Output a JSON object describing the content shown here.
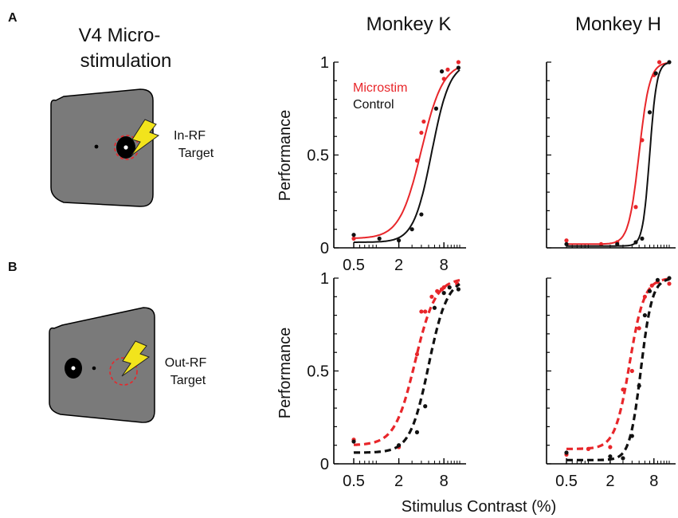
{
  "panel_labels": {
    "a": "A",
    "b": "B"
  },
  "diagram": {
    "title_line1": "V4 Micro-",
    "title_line2": "stimulation",
    "in_rf_line1": "In-RF",
    "in_rf_line2": "Target",
    "out_rf_line1": "Out-RF",
    "out_rf_line2": "Target"
  },
  "column_titles": {
    "left": "Monkey K",
    "right": "Monkey H"
  },
  "shared_xlabel": "Stimulus Contrast (%)",
  "legend": {
    "microstim": "Microstim",
    "control": "Control"
  },
  "colors": {
    "microstim": "#e8262a",
    "control": "#111111",
    "screen": "#7a7a7a",
    "bolt": "#f2e41c"
  },
  "chart_data": [
    {
      "id": "A-monkey-K",
      "type": "line",
      "title": "Monkey K",
      "ylabel": "Performance",
      "xlabel": "",
      "x_scale": "log",
      "xlim": [
        0.5,
        13
      ],
      "ylim": [
        0,
        1
      ],
      "xticks": [
        "0.5",
        "2",
        "8"
      ],
      "yticks": [
        "0",
        "0.5",
        "1"
      ],
      "line_style": "solid",
      "series": [
        {
          "name": "Microstim",
          "color": "#e8262a",
          "points": {
            "x": [
              0.5,
              3.5,
              4.0,
              4.3,
              8.0,
              9.0,
              12.5
            ],
            "y": [
              0.05,
              0.47,
              0.62,
              0.68,
              0.91,
              0.96,
              1.0
            ]
          },
          "fit": {
            "mid": 4.0,
            "slope": 3.0,
            "low": 0.05,
            "high": 1.0
          }
        },
        {
          "name": "Control",
          "color": "#111111",
          "points": {
            "x": [
              0.5,
              1.1,
              2.0,
              3.0,
              4.0,
              6.3,
              7.5,
              12.5
            ],
            "y": [
              0.07,
              0.05,
              0.04,
              0.1,
              0.18,
              0.75,
              0.95,
              0.97
            ]
          },
          "fit": {
            "mid": 5.5,
            "slope": 3.6,
            "low": 0.03,
            "high": 1.0
          }
        }
      ]
    },
    {
      "id": "A-monkey-H",
      "type": "line",
      "title": "Monkey H",
      "ylabel": "",
      "xlabel": "",
      "x_scale": "log",
      "xlim": [
        0.5,
        13
      ],
      "ylim": [
        0,
        1
      ],
      "xticks": [],
      "yticks": [],
      "line_style": "solid",
      "series": [
        {
          "name": "Microstim",
          "color": "#e8262a",
          "points": {
            "x": [
              0.5,
              1.5,
              2.5,
              4.5,
              5.5,
              8.0,
              9.5
            ],
            "y": [
              0.04,
              0.02,
              0.03,
              0.22,
              0.58,
              0.93,
              1.0
            ]
          },
          "fit": {
            "mid": 5.0,
            "slope": 6.0,
            "low": 0.02,
            "high": 1.0
          }
        },
        {
          "name": "Control",
          "color": "#111111",
          "points": {
            "x": [
              0.5,
              2.5,
              4.5,
              5.5,
              7.0,
              8.5,
              13.0
            ],
            "y": [
              0.02,
              0.02,
              0.03,
              0.05,
              0.73,
              0.94,
              1.0
            ]
          },
          "fit": {
            "mid": 7.0,
            "slope": 9.0,
            "low": 0.01,
            "high": 1.0
          }
        }
      ]
    },
    {
      "id": "B-monkey-K",
      "type": "line",
      "title": "",
      "ylabel": "Performance",
      "xlabel": "",
      "x_scale": "log",
      "xlim": [
        0.5,
        13
      ],
      "ylim": [
        0,
        1
      ],
      "xticks": [
        "0.5",
        "2",
        "8"
      ],
      "yticks": [
        "0",
        "0.5",
        "1"
      ],
      "line_style": "dashed",
      "series": [
        {
          "name": "Microstim",
          "color": "#e8262a",
          "points": {
            "x": [
              0.5,
              2.0,
              3.5,
              4.0,
              4.5,
              5.5,
              6.5,
              7.5,
              8.0,
              12.0
            ],
            "y": [
              0.13,
              0.09,
              0.59,
              0.82,
              0.82,
              0.9,
              0.93,
              0.94,
              0.95,
              0.97
            ]
          },
          "fit": {
            "mid": 3.3,
            "slope": 3.2,
            "low": 0.1,
            "high": 1.0
          }
        },
        {
          "name": "Control",
          "color": "#111111",
          "points": {
            "x": [
              0.5,
              2.0,
              3.5,
              4.5,
              6.0,
              8.0,
              9.5,
              12.5
            ],
            "y": [
              0.12,
              0.1,
              0.17,
              0.31,
              0.84,
              0.92,
              0.95,
              0.94
            ]
          },
          "fit": {
            "mid": 5.0,
            "slope": 3.5,
            "low": 0.06,
            "high": 1.0
          }
        }
      ]
    },
    {
      "id": "B-monkey-H",
      "type": "line",
      "title": "",
      "ylabel": "",
      "xlabel": "",
      "x_scale": "log",
      "xlim": [
        0.5,
        13
      ],
      "ylim": [
        0,
        1
      ],
      "xticks": [
        "0.5",
        "2",
        "8"
      ],
      "yticks": [],
      "line_style": "dashed",
      "series": [
        {
          "name": "Microstim",
          "color": "#e8262a",
          "points": {
            "x": [
              0.5,
              1.0,
              2.0,
              3.0,
              4.0,
              5.0,
              6.0,
              7.5,
              9.0,
              13.0
            ],
            "y": [
              0.05,
              0.08,
              0.09,
              0.4,
              0.5,
              0.73,
              0.9,
              0.96,
              0.98,
              0.97
            ]
          },
          "fit": {
            "mid": 3.7,
            "slope": 4.3,
            "low": 0.08,
            "high": 1.0
          }
        },
        {
          "name": "Control",
          "color": "#111111",
          "points": {
            "x": [
              0.5,
              2.0,
              3.0,
              4.0,
              5.0,
              6.0,
              7.0,
              9.0,
              13.0
            ],
            "y": [
              0.06,
              0.04,
              0.03,
              0.15,
              0.42,
              0.8,
              0.93,
              0.99,
              1.0
            ]
          },
          "fit": {
            "mid": 5.3,
            "slope": 5.6,
            "low": 0.02,
            "high": 1.0
          }
        }
      ]
    }
  ]
}
